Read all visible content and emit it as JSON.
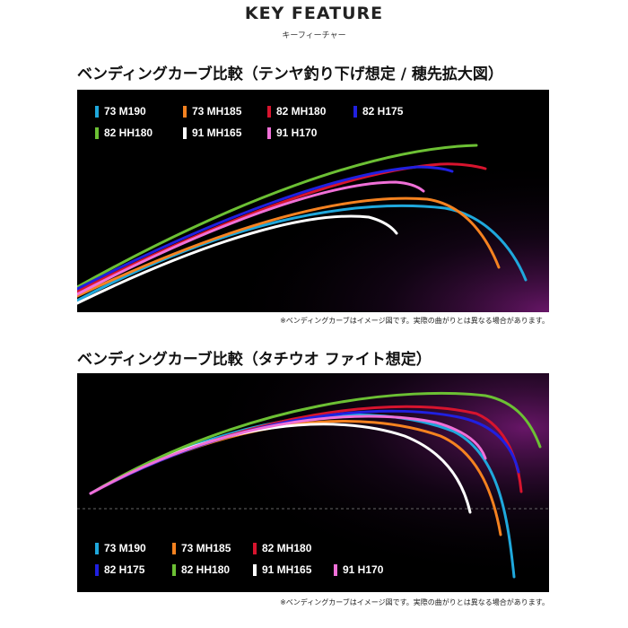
{
  "header": {
    "title": "KEY FEATURE",
    "subtitle": "キーフィーチャー"
  },
  "colors": {
    "73 M190": "#1fa8dc",
    "73 MH185": "#f58220",
    "82 MH180": "#d7142e",
    "82 H175": "#2020e0",
    "82 HH180": "#6cc034",
    "91 MH165": "#ffffff",
    "91 H170": "#f070d8"
  },
  "chart_data": [
    {
      "type": "line",
      "title": "ベンディングカーブ比較（テンヤ釣り下げ想定 / 穂先拡大図）",
      "note": "※ベンディングカーブはイメージ図です。実際の曲がりとは異なる場合があります。",
      "series": [
        {
          "name": "73 M190"
        },
        {
          "name": "73 MH185"
        },
        {
          "name": "82 MH180"
        },
        {
          "name": "82 H175"
        },
        {
          "name": "82 HH180"
        },
        {
          "name": "91 MH165"
        },
        {
          "name": "91 H170"
        }
      ]
    },
    {
      "type": "line",
      "title": "ベンディングカーブ比較（タチウオ ファイト想定）",
      "note": "※ベンディングカーブはイメージ図です。実際の曲がりとは異なる場合があります。",
      "series": [
        {
          "name": "73 M190"
        },
        {
          "name": "73 MH185"
        },
        {
          "name": "82 MH180"
        },
        {
          "name": "82 H175"
        },
        {
          "name": "82 HH180"
        },
        {
          "name": "91 MH165"
        },
        {
          "name": "91 H170"
        }
      ]
    }
  ]
}
